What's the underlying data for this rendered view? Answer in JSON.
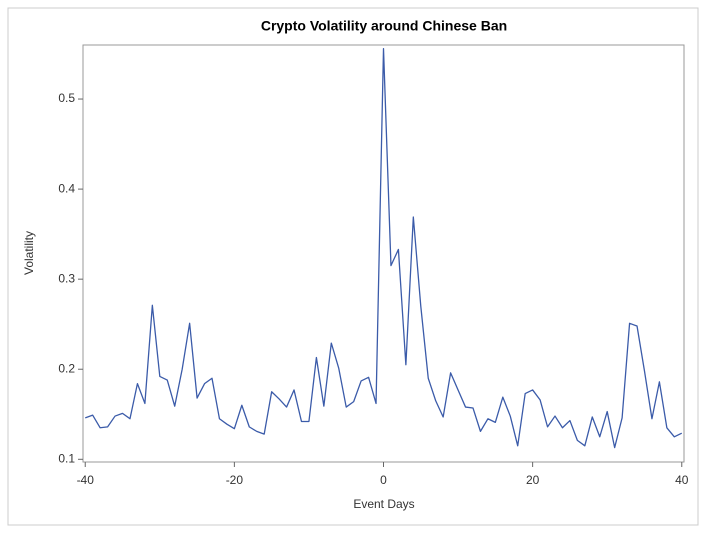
{
  "chart_data": {
    "type": "line",
    "title": "Crypto Volatility around Chinese Ban",
    "x_label": "Event Days",
    "y_label": "Volatility",
    "x": [
      -40,
      -39,
      -38,
      -37,
      -36,
      -35,
      -34,
      -33,
      -32,
      -31,
      -30,
      -29,
      -28,
      -27,
      -26,
      -25,
      -24,
      -23,
      -22,
      -21,
      -20,
      -19,
      -18,
      -17,
      -16,
      -15,
      -14,
      -13,
      -12,
      -11,
      -10,
      -9,
      -8,
      -7,
      -6,
      -5,
      -4,
      -3,
      -2,
      -1,
      0,
      1,
      2,
      3,
      4,
      5,
      6,
      7,
      8,
      9,
      10,
      11,
      12,
      13,
      14,
      15,
      16,
      17,
      18,
      19,
      20,
      21,
      22,
      23,
      24,
      25,
      26,
      27,
      28,
      29,
      30,
      31,
      32,
      33,
      34,
      35,
      36,
      37,
      38,
      39,
      40
    ],
    "series": [
      {
        "name": "Volatility",
        "color": "#3b5ba9",
        "values": [
          0.146,
          0.149,
          0.135,
          0.136,
          0.148,
          0.151,
          0.145,
          0.184,
          0.162,
          0.271,
          0.192,
          0.188,
          0.159,
          0.2,
          0.251,
          0.168,
          0.184,
          0.19,
          0.145,
          0.139,
          0.134,
          0.16,
          0.136,
          0.131,
          0.128,
          0.175,
          0.167,
          0.158,
          0.177,
          0.142,
          0.142,
          0.213,
          0.159,
          0.229,
          0.201,
          0.158,
          0.164,
          0.187,
          0.191,
          0.162,
          0.556,
          0.315,
          0.333,
          0.205,
          0.369,
          0.27,
          0.19,
          0.165,
          0.147,
          0.196,
          0.177,
          0.158,
          0.157,
          0.131,
          0.145,
          0.141,
          0.169,
          0.148,
          0.115,
          0.173,
          0.177,
          0.166,
          0.136,
          0.148,
          0.135,
          0.143,
          0.121,
          0.115,
          0.147,
          0.125,
          0.153,
          0.113,
          0.146,
          0.251,
          0.248,
          0.198,
          0.145,
          0.186,
          0.135,
          0.125,
          0.129
        ]
      }
    ],
    "xlim": [
      -40.3,
      40.3
    ],
    "xticks": [
      -40,
      -20,
      0,
      20,
      40
    ],
    "ylim": [
      0.097,
      0.56
    ],
    "yticks": [
      0.1,
      0.2,
      0.3,
      0.4,
      0.5
    ],
    "grid": false
  }
}
